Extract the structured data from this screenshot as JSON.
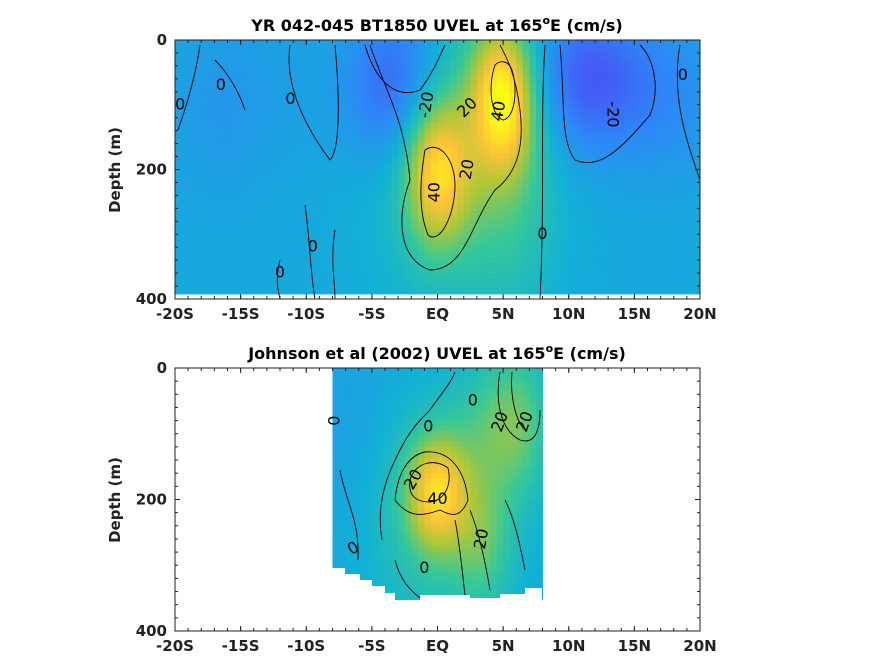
{
  "chart_data": [
    {
      "type": "heatmap",
      "title_main": "YR 042-045 BT1850 UVEL at 165",
      "title_sup": "o",
      "title_end": "E (cm/s)",
      "xlabel": "",
      "ylabel": "Depth (m)",
      "xlim": [
        -20,
        20
      ],
      "ylim": [
        0,
        400
      ],
      "y_reversed": true,
      "colormap": "parula",
      "color_range": [
        -40,
        60
      ],
      "x_ticks": [
        {
          "value": -20,
          "label": "-20S"
        },
        {
          "value": -15,
          "label": "-15S"
        },
        {
          "value": -10,
          "label": "-10S"
        },
        {
          "value": -5,
          "label": "-5S"
        },
        {
          "value": 0,
          "label": "EQ"
        },
        {
          "value": 5,
          "label": "5N"
        },
        {
          "value": 10,
          "label": "10N"
        },
        {
          "value": 15,
          "label": "15N"
        },
        {
          "value": 20,
          "label": "20N"
        }
      ],
      "y_ticks": [
        {
          "value": 0,
          "label": "0"
        },
        {
          "value": 200,
          "label": "200"
        },
        {
          "value": 400,
          "label": "400"
        }
      ],
      "data_extent": {
        "x": [
          -20,
          20
        ],
        "y": [
          0,
          390
        ]
      },
      "features": [
        {
          "x": 0,
          "y": 200,
          "value": 42,
          "sx": 1.7,
          "sy": 80
        },
        {
          "x": 5,
          "y": 90,
          "value": 46,
          "sx": 1.6,
          "sy": 75
        },
        {
          "x": 1.2,
          "y": 150,
          "value": 16,
          "sx": 4.5,
          "sy": 170
        },
        {
          "x": 5.5,
          "y": 200,
          "value": 12,
          "sx": 2.5,
          "sy": 150
        },
        {
          "x": -3,
          "y": 70,
          "value": -26,
          "sx": 2.8,
          "sy": 90
        },
        {
          "x": 11.5,
          "y": 60,
          "value": -24,
          "sx": 3.2,
          "sy": 80
        },
        {
          "x": 18,
          "y": 90,
          "value": -8,
          "sx": 3,
          "sy": 90
        },
        {
          "x": -17,
          "y": 100,
          "value": -5,
          "sx": 2.5,
          "sy": 100
        },
        {
          "x": -12,
          "y": 80,
          "value": -3,
          "sx": 3,
          "sy": 100
        }
      ],
      "background_value": 0,
      "contour_labels": [
        {
          "x": -16.5,
          "y": 70,
          "text": "0",
          "rot": 0
        },
        {
          "x": -19.6,
          "y": 100,
          "text": "0",
          "rot": 0
        },
        {
          "x": -11.2,
          "y": 92,
          "text": "0",
          "rot": 0
        },
        {
          "x": -0.8,
          "y": 100,
          "text": "-20",
          "rot": -80
        },
        {
          "x": 2.3,
          "y": 105,
          "text": "20",
          "rot": -45
        },
        {
          "x": 4.7,
          "y": 110,
          "text": "40",
          "rot": -80
        },
        {
          "x": -0.2,
          "y": 235,
          "text": "40",
          "rot": -90
        },
        {
          "x": 2.3,
          "y": 200,
          "text": "20",
          "rot": -80
        },
        {
          "x": 13.3,
          "y": 115,
          "text": "-20",
          "rot": 90
        },
        {
          "x": 18.7,
          "y": 55,
          "text": "0",
          "rot": 0
        },
        {
          "x": -9.5,
          "y": 320,
          "text": "0",
          "rot": 0
        },
        {
          "x": -12,
          "y": 360,
          "text": "0",
          "rot": 0
        },
        {
          "x": 8,
          "y": 300,
          "text": "0",
          "rot": 0
        }
      ]
    },
    {
      "type": "heatmap",
      "title_main": "Johnson et al (2002) UVEL at 165",
      "title_sup": "o",
      "title_end": "E (cm/s)",
      "xlabel": "",
      "ylabel": "Depth (m)",
      "xlim": [
        -20,
        20
      ],
      "ylim": [
        0,
        400
      ],
      "y_reversed": true,
      "colormap": "parula",
      "color_range": [
        -40,
        60
      ],
      "x_ticks": [
        {
          "value": -20,
          "label": "-20S"
        },
        {
          "value": -15,
          "label": "-15S"
        },
        {
          "value": -10,
          "label": "-10S"
        },
        {
          "value": -5,
          "label": "-5S"
        },
        {
          "value": 0,
          "label": "EQ"
        },
        {
          "value": 5,
          "label": "5N"
        },
        {
          "value": 10,
          "label": "10N"
        },
        {
          "value": 15,
          "label": "15N"
        },
        {
          "value": 20,
          "label": "20N"
        }
      ],
      "y_ticks": [
        {
          "value": 0,
          "label": "0"
        },
        {
          "value": 200,
          "label": "200"
        },
        {
          "value": 400,
          "label": "400"
        }
      ],
      "data_extent": {
        "x": [
          -8,
          8
        ],
        "y": [
          0,
          345
        ]
      },
      "features": [
        {
          "x": 0,
          "y": 190,
          "value": 40,
          "sx": 1.6,
          "sy": 60
        },
        {
          "x": 0,
          "y": 230,
          "value": 14,
          "sx": 3.8,
          "sy": 120
        },
        {
          "x": 4.5,
          "y": 90,
          "value": 16,
          "sx": 2.2,
          "sy": 80
        },
        {
          "x": 6.5,
          "y": 80,
          "value": 12,
          "sx": 1.6,
          "sy": 80
        },
        {
          "x": 3.5,
          "y": 270,
          "value": 14,
          "sx": 1.5,
          "sy": 70
        },
        {
          "x": -6.5,
          "y": 100,
          "value": -3,
          "sx": 2,
          "sy": 120
        }
      ],
      "background_value": 0,
      "contour_labels": [
        {
          "x": -7.8,
          "y": 80,
          "text": "0",
          "rot": -90
        },
        {
          "x": -0.7,
          "y": 90,
          "text": "0",
          "rot": 0
        },
        {
          "x": 2.7,
          "y": 50,
          "text": "0",
          "rot": 0
        },
        {
          "x": 4.8,
          "y": 82,
          "text": "20",
          "rot": -70
        },
        {
          "x": 6.7,
          "y": 82,
          "text": "20",
          "rot": -70
        },
        {
          "x": -1.8,
          "y": 170,
          "text": "20",
          "rot": -60
        },
        {
          "x": 0,
          "y": 200,
          "text": "40",
          "rot": 0
        },
        {
          "x": 3.4,
          "y": 260,
          "text": "20",
          "rot": -80
        },
        {
          "x": -6.4,
          "y": 275,
          "text": "0",
          "rot": -30
        },
        {
          "x": -1,
          "y": 305,
          "text": "0",
          "rot": 0
        }
      ]
    }
  ]
}
